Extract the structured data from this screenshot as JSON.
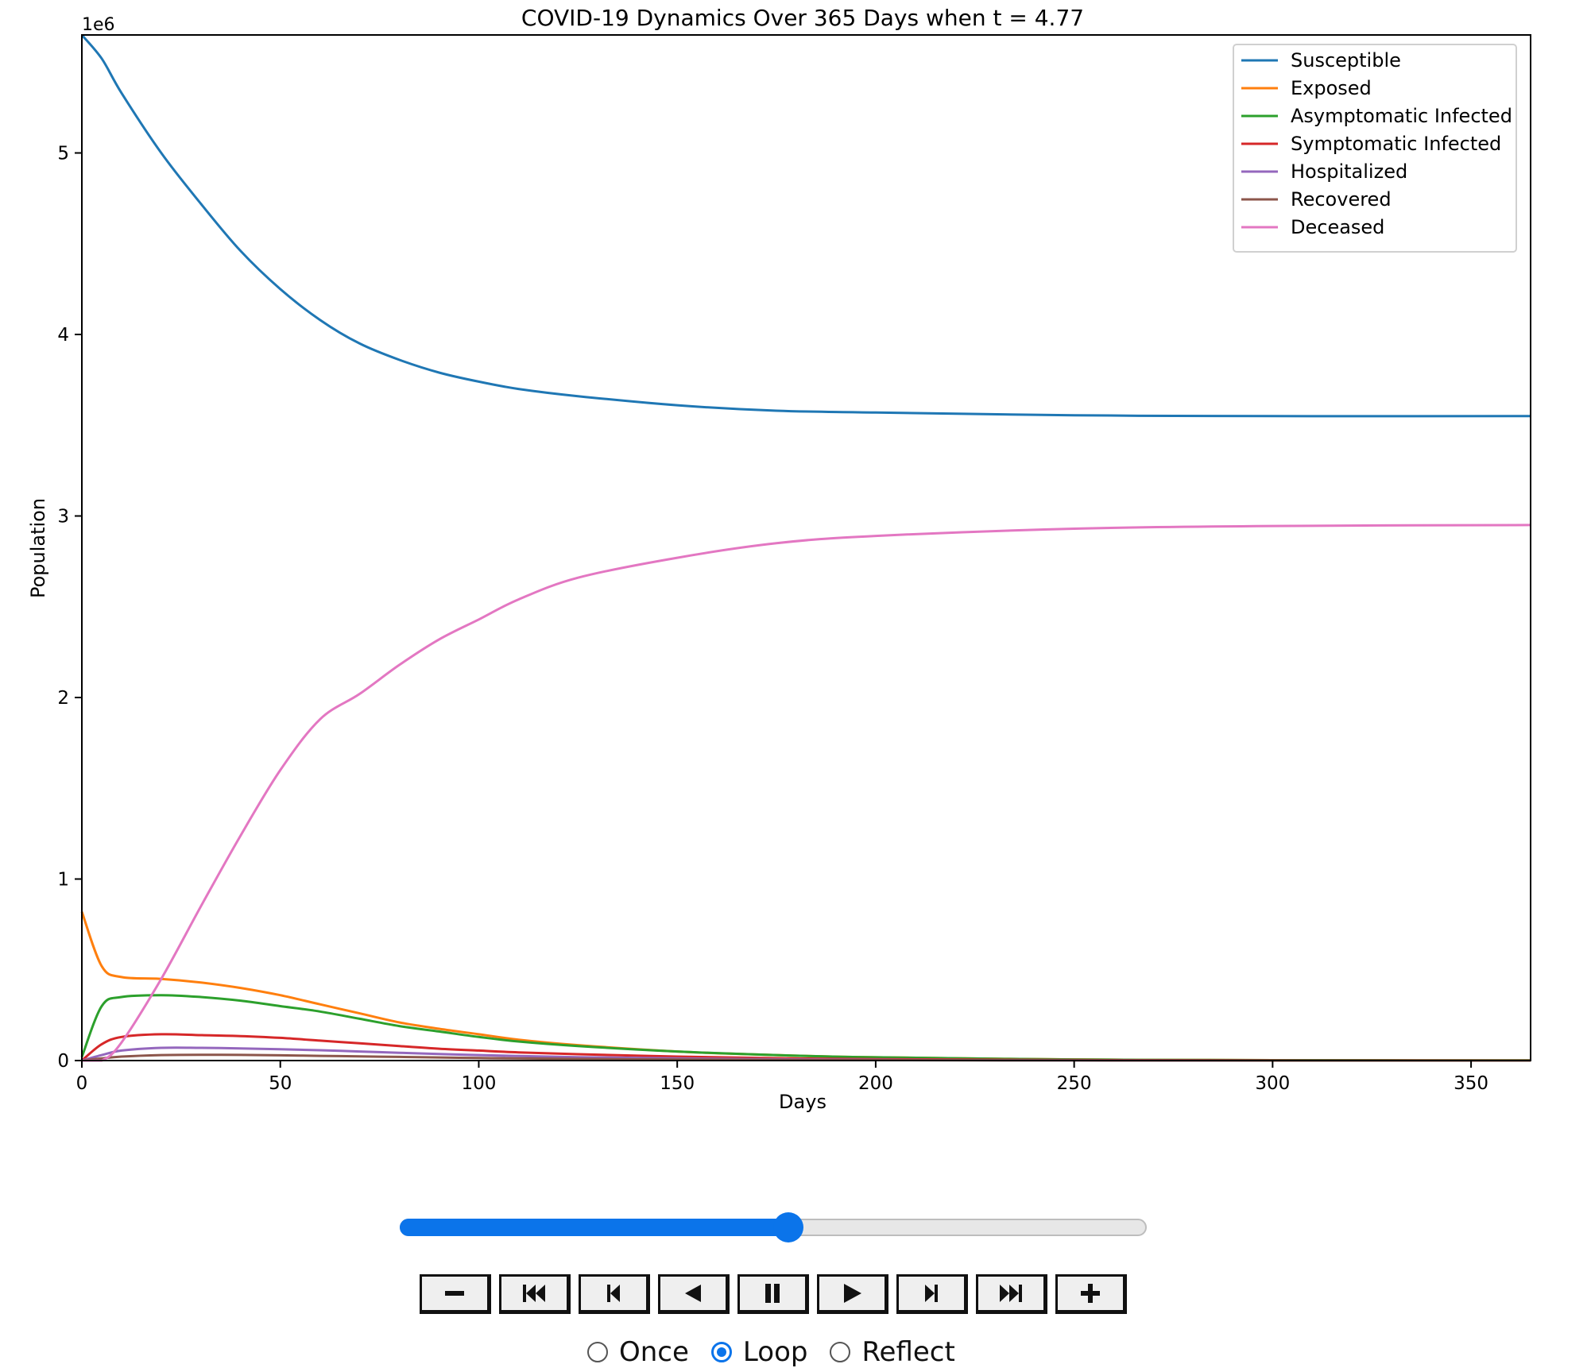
{
  "chart_data": {
    "type": "line",
    "title": "COVID-19 Dynamics Over 365 Days when t = 4.77",
    "xlabel": "Days",
    "ylabel": "Population",
    "y_scale_label": "1e6",
    "xlim": [
      0,
      365
    ],
    "ylim": [
      0,
      5.65
    ],
    "x_ticks": [
      0,
      50,
      100,
      150,
      200,
      250,
      300,
      350
    ],
    "y_ticks": [
      0,
      1,
      2,
      3,
      4,
      5
    ],
    "grid": false,
    "legend_position": "top-right",
    "x": [
      0,
      5,
      10,
      20,
      30,
      40,
      50,
      60,
      70,
      80,
      90,
      100,
      110,
      125,
      150,
      175,
      200,
      250,
      300,
      365
    ],
    "series": [
      {
        "name": "Susceptible",
        "color": "#1f77b4",
        "values": [
          5.65,
          5.52,
          5.33,
          5.0,
          4.72,
          4.46,
          4.25,
          4.08,
          3.95,
          3.86,
          3.79,
          3.74,
          3.7,
          3.66,
          3.61,
          3.58,
          3.57,
          3.555,
          3.55,
          3.55
        ]
      },
      {
        "name": "Exposed",
        "color": "#ff7f0e",
        "values": [
          0.82,
          0.52,
          0.46,
          0.45,
          0.43,
          0.4,
          0.36,
          0.31,
          0.26,
          0.21,
          0.175,
          0.145,
          0.115,
          0.085,
          0.05,
          0.03,
          0.018,
          0.006,
          0.002,
          0.001
        ]
      },
      {
        "name": "Asymptomatic Infected",
        "color": "#2ca02c",
        "values": [
          0.02,
          0.3,
          0.35,
          0.36,
          0.35,
          0.33,
          0.3,
          0.27,
          0.23,
          0.19,
          0.16,
          0.13,
          0.105,
          0.08,
          0.05,
          0.03,
          0.018,
          0.006,
          0.002,
          0.001
        ]
      },
      {
        "name": "Symptomatic Infected",
        "color": "#d62728",
        "values": [
          0.0,
          0.09,
          0.13,
          0.145,
          0.14,
          0.135,
          0.125,
          0.11,
          0.095,
          0.08,
          0.065,
          0.055,
          0.045,
          0.035,
          0.022,
          0.013,
          0.008,
          0.003,
          0.001,
          0.0
        ]
      },
      {
        "name": "Hospitalized",
        "color": "#9467bd",
        "values": [
          0.0,
          0.03,
          0.055,
          0.07,
          0.07,
          0.067,
          0.062,
          0.057,
          0.05,
          0.043,
          0.036,
          0.03,
          0.025,
          0.019,
          0.012,
          0.007,
          0.004,
          0.001,
          0.0,
          0.0
        ]
      },
      {
        "name": "Recovered",
        "color": "#8c564b",
        "values": [
          0.0,
          0.012,
          0.022,
          0.03,
          0.032,
          0.031,
          0.029,
          0.026,
          0.023,
          0.02,
          0.017,
          0.014,
          0.012,
          0.009,
          0.006,
          0.004,
          0.002,
          0.001,
          0.0,
          0.0
        ]
      },
      {
        "name": "Deceased",
        "color": "#e377c2",
        "values": [
          0.0,
          0.0,
          0.1,
          0.45,
          0.85,
          1.24,
          1.6,
          1.88,
          2.02,
          2.18,
          2.32,
          2.43,
          2.54,
          2.66,
          2.77,
          2.85,
          2.89,
          2.93,
          2.945,
          2.95
        ]
      }
    ]
  },
  "animation": {
    "slider_position": 0.52,
    "buttons": [
      {
        "name": "decrease-speed-button",
        "icon": "minus-icon"
      },
      {
        "name": "first-frame-button",
        "icon": "skip-to-start-icon"
      },
      {
        "name": "previous-frame-button",
        "icon": "step-back-icon"
      },
      {
        "name": "play-reverse-button",
        "icon": "play-reverse-icon"
      },
      {
        "name": "pause-button",
        "icon": "pause-icon"
      },
      {
        "name": "play-button",
        "icon": "play-icon"
      },
      {
        "name": "next-frame-button",
        "icon": "step-forward-icon"
      },
      {
        "name": "last-frame-button",
        "icon": "skip-to-end-icon"
      },
      {
        "name": "increase-speed-button",
        "icon": "plus-icon"
      }
    ],
    "modes": [
      {
        "label": "Once",
        "checked": false
      },
      {
        "label": "Loop",
        "checked": true
      },
      {
        "label": "Reflect",
        "checked": false
      }
    ]
  }
}
